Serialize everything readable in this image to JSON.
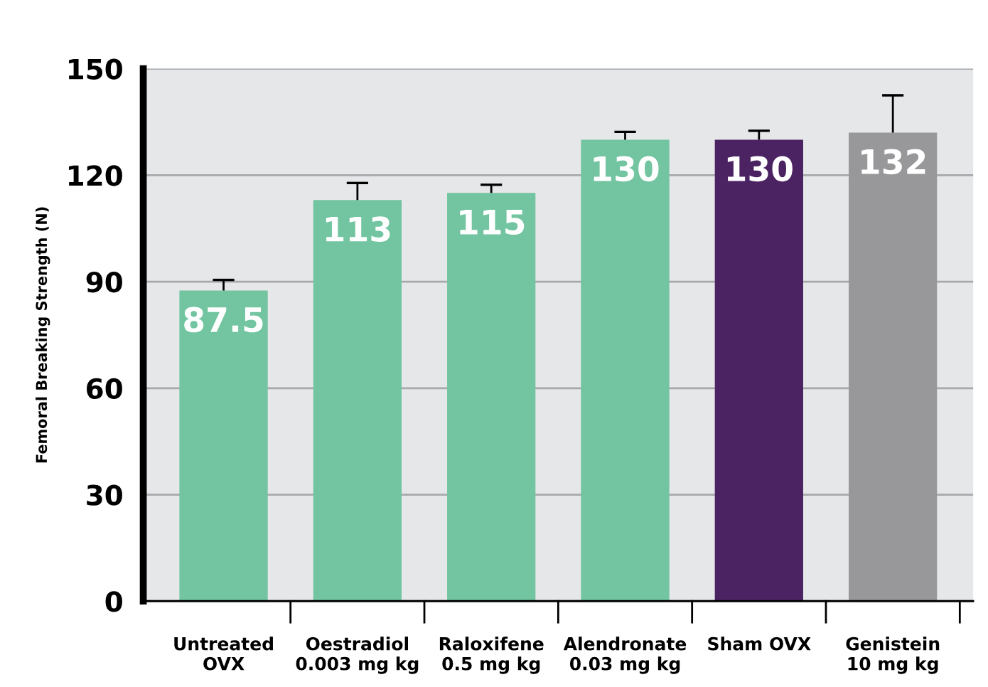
{
  "chart_data": {
    "type": "bar",
    "ylabel": "Femoral Breaking Strength (N)",
    "categories": [
      "Untreated\nOVX",
      "Oestradiol\n0.003 mg kg",
      "Raloxifene\n0.5 mg kg",
      "Alendronate\n0.03 mg kg",
      "Sham OVX",
      "Genistein\n10 mg kg"
    ],
    "values": [
      87.5,
      113,
      115,
      130,
      130,
      132
    ],
    "value_labels": [
      "87.5",
      "113",
      "115",
      "130",
      "130",
      "132"
    ],
    "errors": [
      [
        87.5,
        90.5
      ],
      [
        113,
        117.8
      ],
      [
        115,
        117.3
      ],
      [
        130,
        132.2
      ],
      [
        130,
        132.5
      ],
      [
        132,
        142.5
      ]
    ],
    "colors": [
      "#72c5a0",
      "#72c5a0",
      "#72c5a0",
      "#72c5a0",
      "#4b2363",
      "#98989b"
    ],
    "ylim": [
      0,
      150
    ],
    "yticks": [
      0,
      30,
      60,
      90,
      120,
      150
    ],
    "grid": "y"
  }
}
